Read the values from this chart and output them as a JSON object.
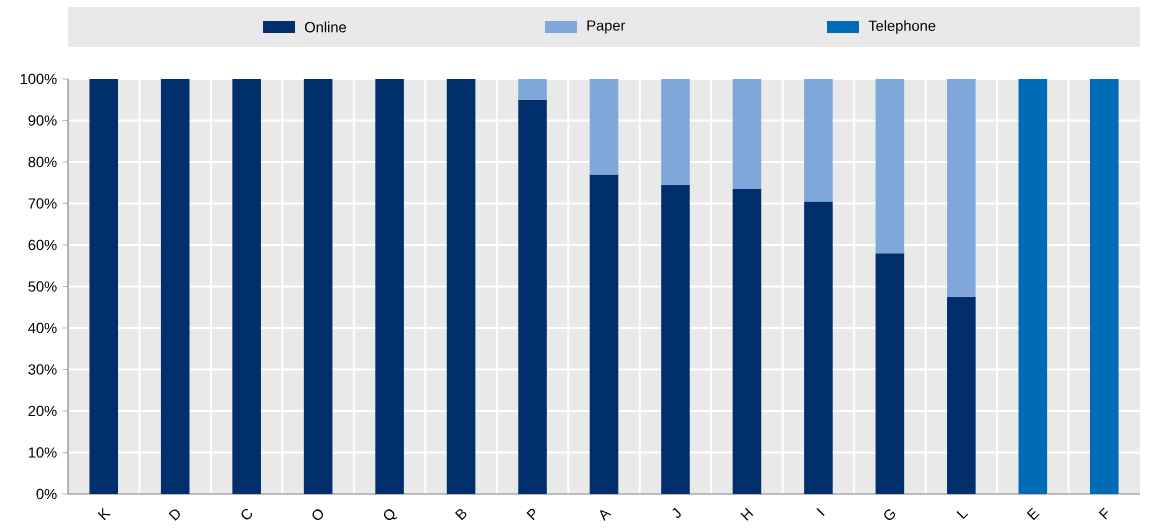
{
  "chart_data": {
    "type": "bar",
    "stacked": true,
    "grid": true,
    "legend": "top",
    "categories": [
      "K",
      "D",
      "C",
      "O",
      "Q",
      "B",
      "P",
      "A",
      "J",
      "H",
      "I",
      "G",
      "L",
      "E",
      "F"
    ],
    "series": [
      {
        "name": "Online",
        "color": "#002f6c",
        "values": [
          100,
          100,
          100,
          100,
          100,
          100,
          95,
          77,
          74.5,
          73.5,
          70.5,
          58,
          47.5,
          null,
          null
        ]
      },
      {
        "name": "Paper",
        "color": "#7fa7d9",
        "values": [
          null,
          null,
          null,
          null,
          null,
          null,
          5,
          23,
          25.5,
          26.5,
          29.5,
          42,
          52.5,
          null,
          null
        ]
      },
      {
        "name": "Telephone",
        "color": "#006bb6",
        "values": [
          null,
          null,
          null,
          null,
          null,
          null,
          null,
          null,
          null,
          null,
          null,
          null,
          null,
          100,
          100
        ]
      }
    ],
    "ylim": [
      0,
      100
    ],
    "yticks": [
      {
        "value": 0,
        "label": "0%"
      },
      {
        "value": 10,
        "label": "10%"
      },
      {
        "value": 20,
        "label": "20%"
      },
      {
        "value": 30,
        "label": "30%"
      },
      {
        "value": 40,
        "label": "40%"
      },
      {
        "value": 50,
        "label": "50%"
      },
      {
        "value": 60,
        "label": "60%"
      },
      {
        "value": 70,
        "label": "70%"
      },
      {
        "value": 80,
        "label": "80%"
      },
      {
        "value": 90,
        "label": "90%"
      },
      {
        "value": 100,
        "label": "100%"
      }
    ]
  }
}
